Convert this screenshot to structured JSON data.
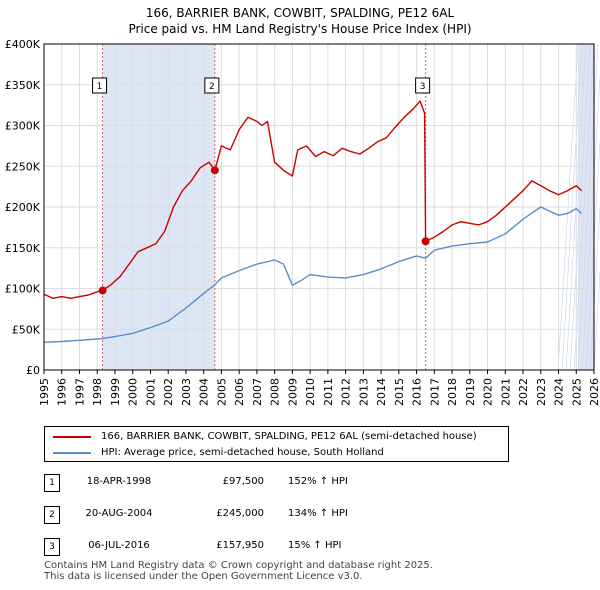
{
  "header": {
    "title_line1": "166, BARRIER BANK, COWBIT, SPALDING, PE12 6AL",
    "title_line2": "Price paid vs. HM Land Registry's House Price Index (HPI)"
  },
  "colors": {
    "property": "#cc0000",
    "hpi": "#5b8ec9",
    "shade": "#dde6f5",
    "grid": "#dddddd"
  },
  "legend": {
    "property_label": "166, BARRIER BANK, COWBIT, SPALDING, PE12 6AL (semi-detached house)",
    "hpi_label": "HPI: Average price, semi-detached house, South Holland"
  },
  "sales": [
    {
      "num": "1",
      "date": "18-APR-1998",
      "price": "£97,500",
      "hpi": "152% ↑ HPI"
    },
    {
      "num": "2",
      "date": "20-AUG-2004",
      "price": "£245,000",
      "hpi": "134% ↑ HPI"
    },
    {
      "num": "3",
      "date": "06-JUL-2016",
      "price": "£157,950",
      "hpi": "15% ↑ HPI"
    }
  ],
  "footer": {
    "line1": "Contains HM Land Registry data © Crown copyright and database right 2025.",
    "line2": "This data is licensed under the Open Government Licence v3.0."
  },
  "chart_data": {
    "type": "line",
    "title": "166, BARRIER BANK, COWBIT, SPALDING, PE12 6AL — Price paid vs. HM Land Registry's House Price Index (HPI)",
    "xlim": [
      1995,
      2026
    ],
    "ylim": [
      0,
      400000
    ],
    "x_ticks": [
      "1995",
      "1996",
      "1997",
      "1998",
      "1999",
      "2000",
      "2001",
      "2002",
      "2003",
      "2004",
      "2005",
      "2006",
      "2007",
      "2008",
      "2009",
      "2010",
      "2011",
      "2012",
      "2013",
      "2014",
      "2015",
      "2016",
      "2017",
      "2018",
      "2019",
      "2020",
      "2021",
      "2022",
      "2023",
      "2024",
      "2025",
      "2026"
    ],
    "y_ticks": [
      {
        "value": 0,
        "label": "£0"
      },
      {
        "value": 50000,
        "label": "£50K"
      },
      {
        "value": 100000,
        "label": "£100K"
      },
      {
        "value": 150000,
        "label": "£150K"
      },
      {
        "value": 200000,
        "label": "£200K"
      },
      {
        "value": 250000,
        "label": "£250K"
      },
      {
        "value": 300000,
        "label": "£300K"
      },
      {
        "value": 350000,
        "label": "£350K"
      },
      {
        "value": 400000,
        "label": "£400K"
      }
    ],
    "shaded_spans": [
      [
        1998.3,
        2004.63
      ],
      [
        2016.51,
        2016.51
      ],
      [
        2025.1,
        2026
      ]
    ],
    "markers": [
      {
        "label": "1",
        "x": 1998.3,
        "y": 97500
      },
      {
        "label": "2",
        "x": 2004.63,
        "y": 245000
      },
      {
        "label": "3",
        "x": 2016.51,
        "y": 157950
      }
    ],
    "series": [
      {
        "name": "166, BARRIER BANK, COWBIT, SPALDING, PE12 6AL (semi-detached house)",
        "x": [
          1995,
          1995.5,
          1996,
          1996.5,
          1997,
          1997.5,
          1998,
          1998.3,
          1998.8,
          1999.3,
          1999.8,
          2000.3,
          2000.8,
          2001.3,
          2001.8,
          2002.3,
          2002.8,
          2003.3,
          2003.8,
          2004.3,
          2004.63,
          2005,
          2005.5,
          2006,
          2006.5,
          2007,
          2007.3,
          2007.6,
          2008,
          2008.5,
          2009,
          2009.3,
          2009.8,
          2010.3,
          2010.8,
          2011.3,
          2011.8,
          2012.3,
          2012.8,
          2013.3,
          2013.8,
          2014.3,
          2014.8,
          2015.3,
          2015.8,
          2016.2,
          2016.45,
          2016.51,
          2017,
          2017.5,
          2018,
          2018.5,
          2019,
          2019.5,
          2020,
          2020.5,
          2021,
          2021.5,
          2022,
          2022.5,
          2023,
          2023.5,
          2024,
          2024.5,
          2025,
          2025.3
        ],
        "y": [
          93000,
          88000,
          90000,
          88000,
          90000,
          92000,
          96000,
          97500,
          105000,
          115000,
          130000,
          145000,
          150000,
          155000,
          170000,
          200000,
          220000,
          232000,
          248000,
          255000,
          245000,
          275000,
          270000,
          295000,
          310000,
          305000,
          300000,
          305000,
          255000,
          245000,
          238000,
          270000,
          275000,
          262000,
          268000,
          263000,
          272000,
          268000,
          265000,
          272000,
          280000,
          285000,
          298000,
          310000,
          320000,
          330000,
          315000,
          157950,
          163000,
          170000,
          178000,
          182000,
          180000,
          178000,
          182000,
          190000,
          200000,
          210000,
          220000,
          232000,
          226000,
          220000,
          215000,
          220000,
          226000,
          220000
        ]
      },
      {
        "name": "HPI: Average price, semi-detached house, South Holland",
        "x": [
          1995,
          1996,
          1997,
          1998,
          1998.3,
          1999,
          2000,
          2001,
          2002,
          2003,
          2004,
          2004.63,
          2005,
          2006,
          2007,
          2008,
          2008.5,
          2009,
          2009.5,
          2010,
          2011,
          2012,
          2013,
          2014,
          2015,
          2016,
          2016.51,
          2017,
          2018,
          2019,
          2020,
          2021,
          2022,
          2023,
          2023.5,
          2024,
          2024.5,
          2025,
          2025.3
        ],
        "y": [
          34000,
          35000,
          36500,
          38000,
          38500,
          41000,
          45000,
          52000,
          60000,
          76000,
          94000,
          104500,
          113000,
          122000,
          130000,
          135000,
          130000,
          104000,
          110000,
          117000,
          114000,
          113000,
          117000,
          124000,
          133000,
          140000,
          137000,
          147000,
          152000,
          155000,
          157000,
          167000,
          185000,
          200000,
          195000,
          190000,
          192000,
          198000,
          192000
        ]
      }
    ]
  }
}
